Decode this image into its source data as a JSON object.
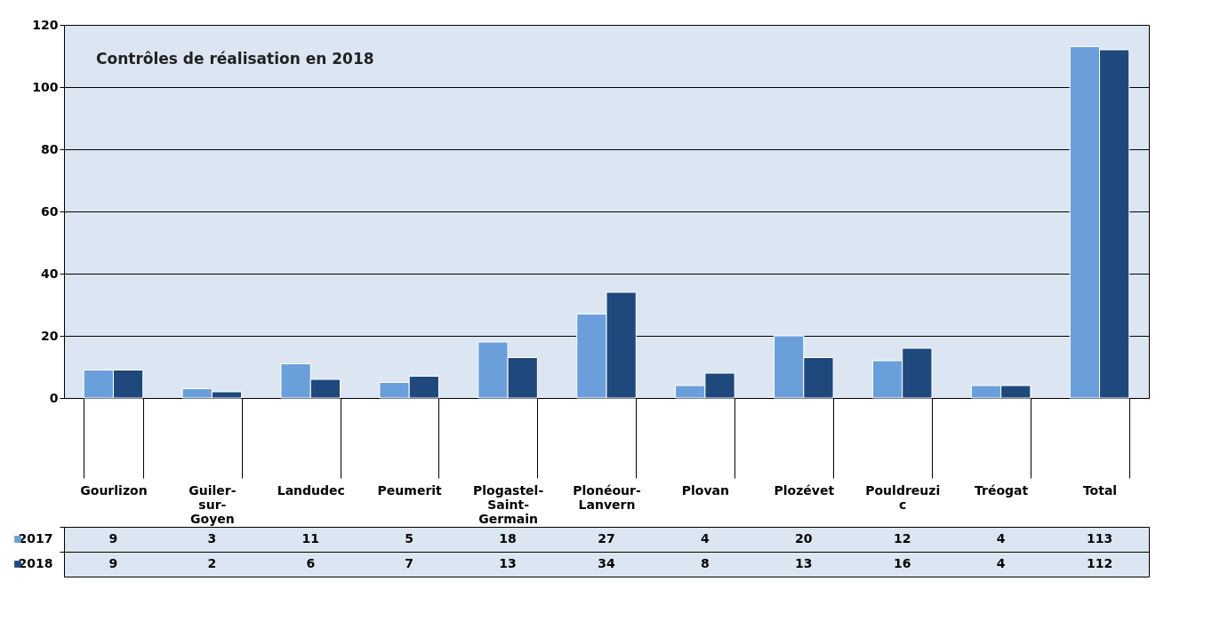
{
  "chart_data": {
    "type": "bar",
    "title": "Contrôles de réalisation en 2018",
    "categories": [
      "Gourlizon",
      "Guiler-sur-Goyen",
      "Landudec",
      "Peumerit",
      "Plogastel-Saint-Germain",
      "Plonéour-Lanvern",
      "Plovan",
      "Plozévet",
      "Pouldreuzic",
      "Tréogat",
      "Total"
    ],
    "series": [
      {
        "name": "2017",
        "color": "#6a9fdc",
        "values": [
          9,
          3,
          11,
          5,
          18,
          27,
          4,
          20,
          12,
          4,
          113
        ]
      },
      {
        "name": "2018",
        "color": "#1f497d",
        "values": [
          9,
          2,
          6,
          7,
          13,
          34,
          8,
          13,
          16,
          4,
          112
        ]
      }
    ],
    "ylim": [
      0,
      120
    ],
    "yticks": [
      0,
      20,
      40,
      60,
      80,
      100,
      120
    ],
    "grid": "y",
    "legend": "bottom left",
    "data_labels": true
  }
}
